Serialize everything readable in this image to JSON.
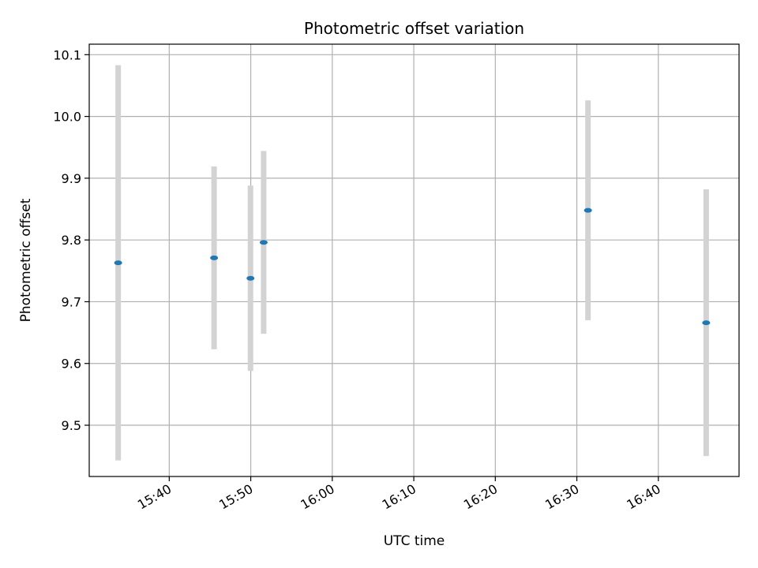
{
  "chart_data": {
    "type": "scatter",
    "title": "Photometric offset variation",
    "xlabel": "UTC time",
    "ylabel": "Photometric offset",
    "x_axis_type": "time",
    "xlim": [
      "15:30:11",
      "16:49:54"
    ],
    "ylim": [
      9.417,
      10.117
    ],
    "x_ticks": [
      "15:40",
      "15:50",
      "16:00",
      "16:10",
      "16:20",
      "16:30",
      "16:40"
    ],
    "y_ticks": [
      9.5,
      9.6,
      9.7,
      9.8,
      9.9,
      10.0,
      10.1
    ],
    "grid": true,
    "marker_color": "#1f77b4",
    "errorbar_color": "#d3d3d3",
    "points": [
      {
        "x": "15:33:44",
        "y": 9.763,
        "yerr": 0.32
      },
      {
        "x": "15:45:30",
        "y": 9.771,
        "yerr": 0.148
      },
      {
        "x": "15:49:58",
        "y": 9.738,
        "yerr": 0.15
      },
      {
        "x": "15:51:35",
        "y": 9.796,
        "yerr": 0.148
      },
      {
        "x": "16:31:22",
        "y": 9.848,
        "yerr": 0.178
      },
      {
        "x": "16:45:52",
        "y": 9.666,
        "yerr": 0.216
      }
    ]
  }
}
